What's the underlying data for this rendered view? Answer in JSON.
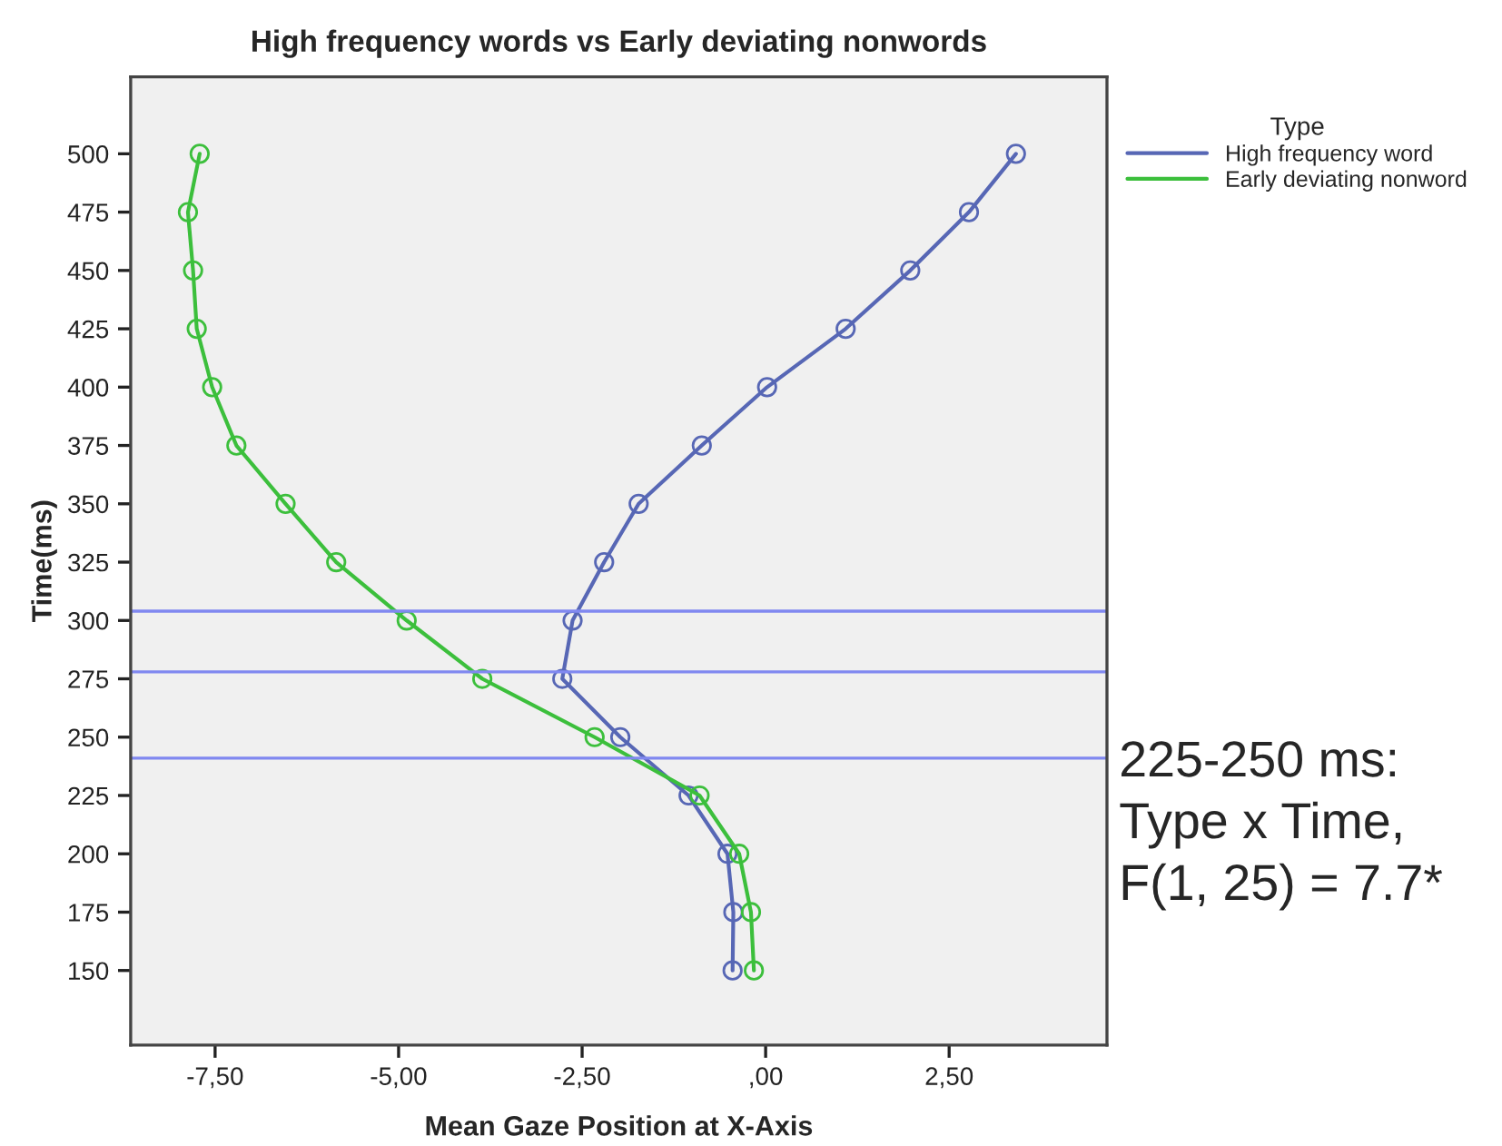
{
  "chart_data": {
    "type": "line",
    "title": "High frequency words vs Early deviating nonwords",
    "xlabel": "Mean Gaze Position at X-Axis",
    "ylabel": "Time(ms)",
    "legend_title": "Type",
    "series": [
      {
        "name": "High frequency word",
        "color": "#5767b5",
        "x": [
          -0.45,
          -0.44,
          -0.52,
          -1.05,
          -1.98,
          -2.77,
          -2.63,
          -2.2,
          -1.73,
          -0.87,
          0.02,
          1.09,
          1.97,
          2.77,
          3.41
        ],
        "values": [
          150,
          175,
          200,
          225,
          250,
          275,
          300,
          325,
          350,
          375,
          400,
          425,
          450,
          475,
          500
        ]
      },
      {
        "name": "Early deviating nonword",
        "color": "#3cbf3c",
        "x": [
          -0.16,
          -0.2,
          -0.36,
          -0.9,
          -2.33,
          -3.86,
          -4.89,
          -5.85,
          -6.54,
          -7.21,
          -7.54,
          -7.75,
          -7.8,
          -7.87,
          -7.71
        ],
        "values": [
          150,
          175,
          200,
          225,
          250,
          275,
          300,
          325,
          350,
          375,
          400,
          425,
          450,
          475,
          500
        ]
      }
    ],
    "xlim": [
      -8.65,
      4.65
    ],
    "ylim": [
      118,
      533
    ],
    "xticks": [
      {
        "value": -7.5,
        "label": "-7,50"
      },
      {
        "value": -5,
        "label": "-5,00"
      },
      {
        "value": -2.5,
        "label": "-2,50"
      },
      {
        "value": 0,
        "label": ",00"
      },
      {
        "value": 2.5,
        "label": "2,50"
      }
    ],
    "yticks": [
      150,
      175,
      200,
      225,
      250,
      275,
      300,
      325,
      350,
      375,
      400,
      425,
      450,
      475,
      500
    ],
    "ref_lines": [
      {
        "axis": "y",
        "value": 304,
        "color": "#8088f0"
      },
      {
        "axis": "y",
        "value": 278,
        "color": "#8088f0"
      },
      {
        "axis": "y",
        "value": 241,
        "color": "#8088f0"
      }
    ],
    "annotations": [
      "225-250 ms:\nType x Time,\nF(1, 25) = 7.7*"
    ],
    "marker": "circle",
    "line_style": "solid",
    "legend": "right",
    "grid": false
  }
}
